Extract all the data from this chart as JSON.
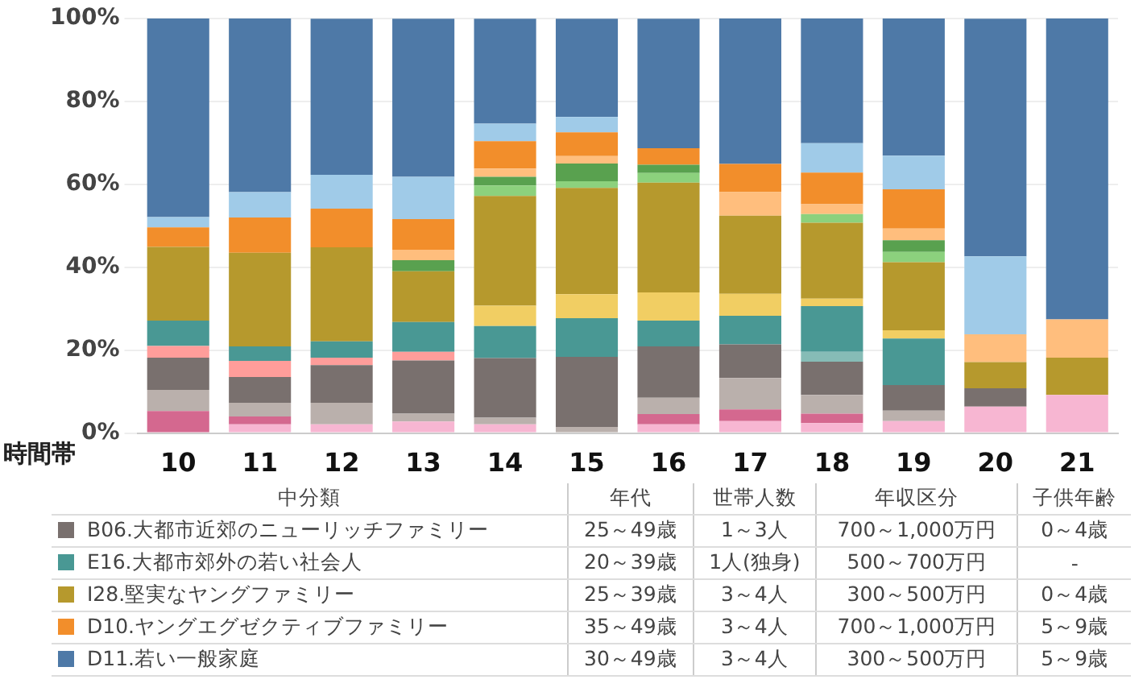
{
  "chart_data": {
    "type": "bar",
    "stacked": true,
    "xlabel": "時間帯",
    "legend_title": "中分類",
    "legend": "bottom",
    "grid": "y",
    "categories": [
      "10",
      "11",
      "12",
      "13",
      "14",
      "15",
      "16",
      "17",
      "18",
      "19",
      "20",
      "21"
    ],
    "ylim": [
      0,
      100
    ],
    "yticks": [
      {
        "value": 0,
        "label": "0%"
      },
      {
        "value": 20,
        "label": "20%"
      },
      {
        "value": 40,
        "label": "40%"
      },
      {
        "value": 60,
        "label": "60%"
      },
      {
        "value": 80,
        "label": "80%"
      },
      {
        "value": 100,
        "label": "100%"
      }
    ],
    "series": [
      {
        "color": "#f7b6d2",
        "values": [
          null,
          2.1,
          2.1,
          2.8,
          2.1,
          null,
          2.1,
          2.9,
          2.4,
          2.9,
          6.4,
          9.2
        ]
      },
      {
        "color": "#d4688f",
        "values": [
          5.3,
          1.9,
          null,
          null,
          null,
          null,
          2.5,
          2.8,
          2.3,
          null,
          null,
          null
        ]
      },
      {
        "color": "#bab0ac",
        "values": [
          5.1,
          3.3,
          5.2,
          1.9,
          1.6,
          1.5,
          3.9,
          7.6,
          4.5,
          2.5,
          null,
          null
        ]
      },
      {
        "name": "B06.大都市近郊のニューリッチファミリー",
        "color": "#79706e",
        "values": [
          7.8,
          6.2,
          9.1,
          12.8,
          14.4,
          16.9,
          12.4,
          8.1,
          8.0,
          6.2,
          4.4,
          null
        ]
      },
      {
        "color": "#ff9d9a",
        "values": [
          2.8,
          3.9,
          1.8,
          2.1,
          null,
          null,
          null,
          null,
          null,
          null,
          null,
          null
        ]
      },
      {
        "color": "#86bcb6",
        "values": [
          null,
          null,
          null,
          null,
          null,
          null,
          null,
          null,
          2.4,
          null,
          null,
          null
        ]
      },
      {
        "name": "E16.大都市郊外の若い社会人",
        "color": "#499894",
        "values": [
          6.1,
          3.5,
          3.9,
          7.2,
          7.7,
          9.3,
          6.2,
          6.9,
          11.0,
          11.2,
          null,
          null
        ]
      },
      {
        "color": "#f1ce63",
        "values": [
          null,
          null,
          null,
          null,
          4.9,
          5.8,
          6.8,
          5.3,
          1.8,
          2.0,
          null,
          null
        ]
      },
      {
        "name": "I28.堅実なヤングファミリー",
        "color": "#b6992d",
        "values": [
          17.8,
          22.6,
          22.7,
          12.2,
          26.5,
          25.6,
          26.5,
          18.8,
          18.3,
          16.4,
          6.3,
          9.0
        ]
      },
      {
        "color": "#8cd17d",
        "values": [
          null,
          null,
          null,
          null,
          2.5,
          1.6,
          2.3,
          null,
          2.1,
          2.5,
          null,
          null
        ]
      },
      {
        "color": "#59a14f",
        "values": [
          null,
          null,
          null,
          2.7,
          2.1,
          4.3,
          2.0,
          null,
          null,
          2.8,
          null,
          null
        ]
      },
      {
        "color": "#ffbe7d",
        "values": [
          null,
          null,
          null,
          2.5,
          2.0,
          1.8,
          null,
          5.7,
          2.4,
          2.8,
          6.7,
          9.2
        ]
      },
      {
        "name": "D10.ヤングエグゼクティブファミリー",
        "color": "#f28e2b",
        "values": [
          4.7,
          8.5,
          9.3,
          7.4,
          6.6,
          5.7,
          4.0,
          6.8,
          7.6,
          9.5,
          null,
          null
        ]
      },
      {
        "color": "#a0cbe8",
        "values": [
          2.5,
          6.1,
          8.2,
          10.2,
          4.2,
          3.7,
          null,
          null,
          7.1,
          8.1,
          18.8,
          null
        ]
      },
      {
        "name": "D11.若い一般家庭",
        "color": "#4e79a7",
        "values": [
          47.9,
          41.9,
          37.6,
          38.1,
          25.3,
          23.7,
          31.2,
          35.1,
          30.1,
          33.1,
          57.3,
          72.6
        ]
      }
    ],
    "annotations": [
      "年代",
      "世帯人数",
      "年収区分",
      "子供年齢",
      "25～49歳",
      "1～3人",
      "700～1,000万円",
      "0～4歳",
      "20～39歳",
      "1人(独身)",
      "500～700万円",
      "-",
      "25～39歳",
      "3～4人",
      "300～500万円",
      "0～4歳",
      "35～49歳",
      "3～4人",
      "700～1,000万円",
      "5～9歳",
      "30～49歳",
      "3～4人",
      "300～500万円",
      "5～9歳"
    ]
  }
}
